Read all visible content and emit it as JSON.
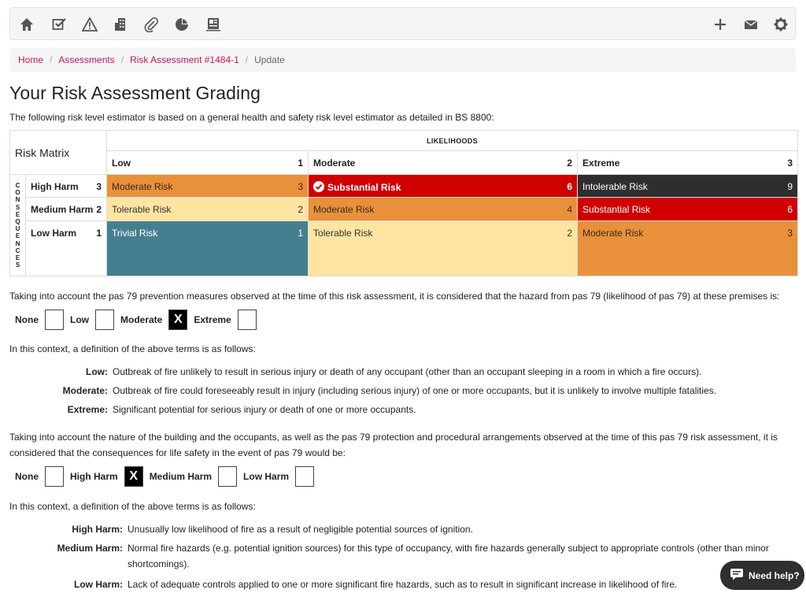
{
  "toolbar": {
    "left_icons": [
      "home-icon",
      "checklist-icon",
      "warning-icon",
      "building-icon",
      "paperclip-icon",
      "pie-chart-icon",
      "id-card-icon"
    ],
    "right_icons": [
      "plus-icon",
      "envelope-icon",
      "gear-icon"
    ]
  },
  "breadcrumb": {
    "items": [
      "Home",
      "Assessments",
      "Risk Assessment #1484-1"
    ],
    "current": "Update"
  },
  "page": {
    "title": "Your Risk Assessment Grading",
    "intro": "The following risk level estimator is based on a general health and safety risk level estimator as detailed in BS 8800:"
  },
  "matrix": {
    "corner": "Risk Matrix",
    "likelihoods_label": "LIKELIHOODS",
    "consequences_label": "CONSEQUENCES",
    "likelihoods": [
      {
        "label": "Low",
        "num": "1"
      },
      {
        "label": "Moderate",
        "num": "2"
      },
      {
        "label": "Extreme",
        "num": "3"
      }
    ],
    "consequences": [
      {
        "label": "High Harm",
        "num": "3"
      },
      {
        "label": "Medium Harm",
        "num": "2"
      },
      {
        "label": "Low Harm",
        "num": "1"
      }
    ],
    "cells": [
      [
        {
          "label": "Moderate Risk",
          "num": "3",
          "color": "#e8913a"
        },
        {
          "label": "Substantial Risk",
          "num": "6",
          "color": "#d00000",
          "selected": true
        },
        {
          "label": "Intolerable Risk",
          "num": "9",
          "color": "#2e2e2e"
        }
      ],
      [
        {
          "label": "Tolerable Risk",
          "num": "2",
          "color": "#fde4a0"
        },
        {
          "label": "Moderate Risk",
          "num": "4",
          "color": "#e8913a"
        },
        {
          "label": "Substantial Risk",
          "num": "6",
          "color": "#d00000"
        }
      ],
      [
        {
          "label": "Trivial Risk",
          "num": "1",
          "color": "#457f8f"
        },
        {
          "label": "Tolerable Risk",
          "num": "2",
          "color": "#fde4a0"
        },
        {
          "label": "Moderate Risk",
          "num": "3",
          "color": "#e8913a"
        }
      ]
    ]
  },
  "likelihood_section": {
    "text": "Taking into account the pas 79 prevention measures observed at the time of this risk assessment, it is considered that the hazard from pas 79 (likelihood of pas 79) at these premises is:",
    "options": [
      {
        "label": "None",
        "checked": false
      },
      {
        "label": "Low",
        "checked": false
      },
      {
        "label": "Moderate",
        "checked": true
      },
      {
        "label": "Extreme",
        "checked": false
      }
    ],
    "mark": "X",
    "context": "In this context, a definition of the above terms is as follows:",
    "definitions": [
      {
        "term": "Low:",
        "desc": "Outbreak of fire unlikely to result in serious injury or death of any occupant (other than an occupant sleeping in a room in which a fire occurs)."
      },
      {
        "term": "Moderate:",
        "desc": "Outbreak of fire could foreseeably result in injury (including serious injury) of one or more occupants, but it is unlikely to involve multiple fatalities."
      },
      {
        "term": "Extreme:",
        "desc": "Significant potential for serious injury or death of one or more occupants."
      }
    ]
  },
  "consequence_section": {
    "text": "Taking into account the nature of the building and the occupants, as well as the pas 79 protection and procedural arrangements observed at the time of this pas 79 risk assessment, it is considered that the consequences for life safety in the event of pas 79 would be:",
    "options": [
      {
        "label": "None",
        "checked": false
      },
      {
        "label": "High Harm",
        "checked": true
      },
      {
        "label": "Medium Harm",
        "checked": false
      },
      {
        "label": "Low Harm",
        "checked": false
      }
    ],
    "mark": "X",
    "context": "In this context, a definition of the above terms is as follows:",
    "definitions": [
      {
        "term": "High Harm:",
        "desc": "Unusually low likelihood of fire as a result of negligible potential sources of ignition."
      },
      {
        "term": "Medium Harm:",
        "desc": "Normal fire hazards (e.g. potential ignition sources) for this type of occupancy, with fire hazards generally subject to appropriate controls (other than minor shortcomings)."
      },
      {
        "term": "Low Harm:",
        "desc": "Lack of adequate controls applied to one or more significant fire hazards, such as to result in significant increase in likelihood of fire."
      }
    ]
  },
  "help": {
    "label": "Need help?"
  }
}
